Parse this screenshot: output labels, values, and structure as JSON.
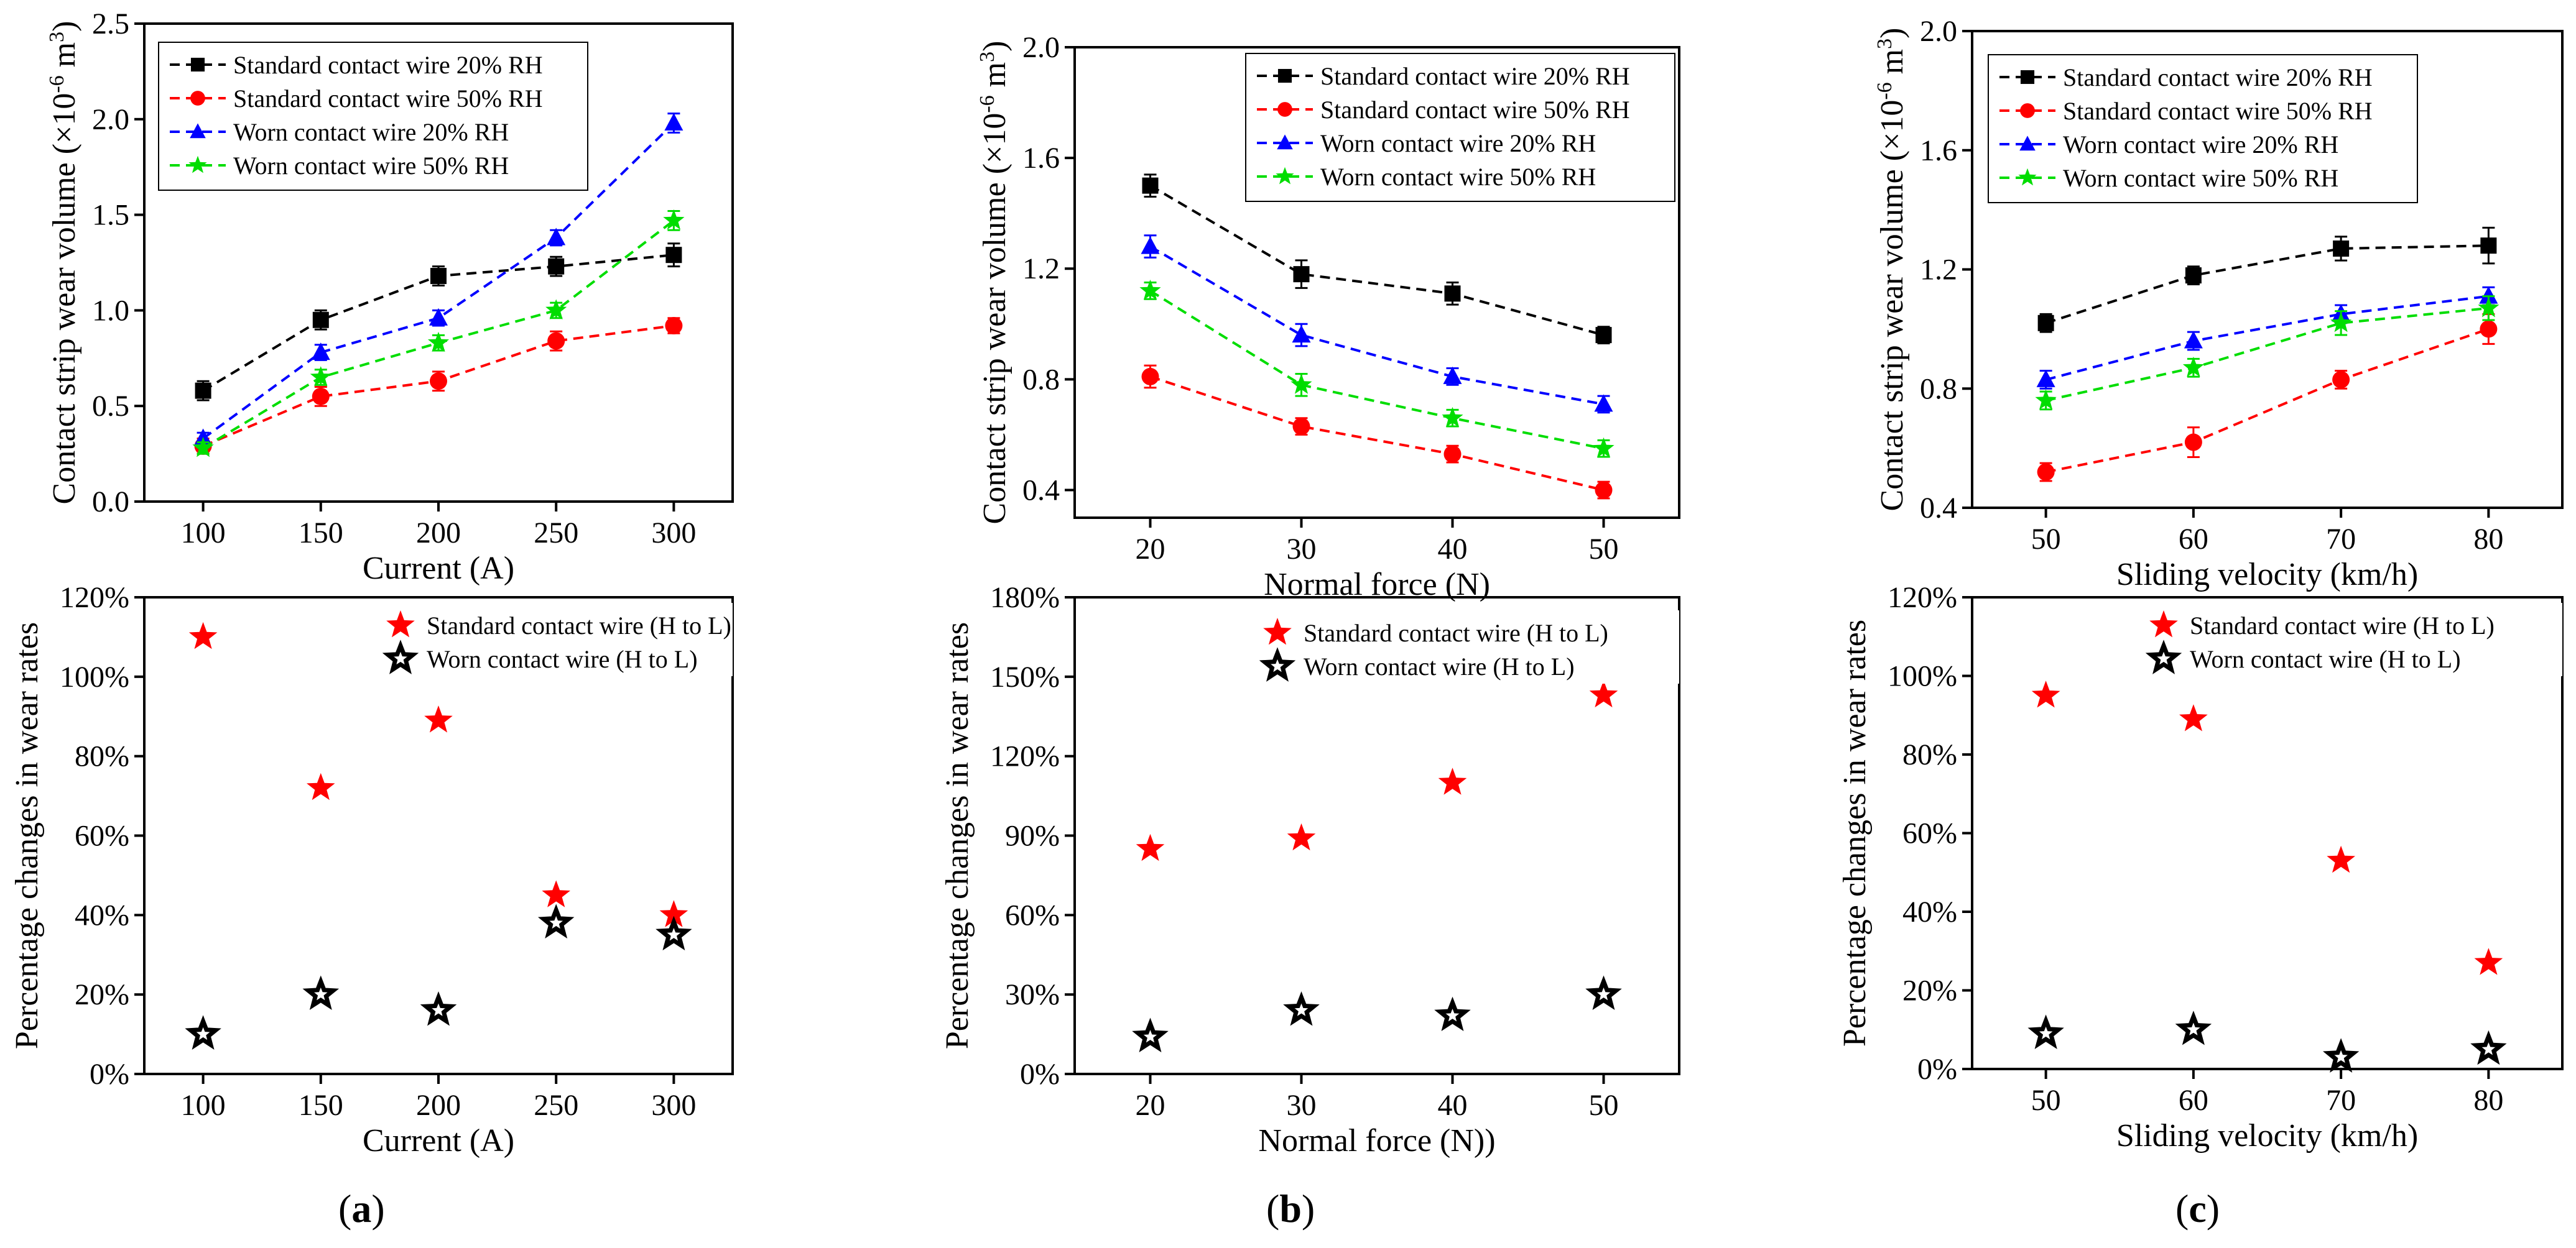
{
  "chart_data": [
    {
      "id": "a-top",
      "type": "line",
      "xlabel": "Current (A)",
      "ylabel": {
        "main": "Contact strip wear volume (×10",
        "sup1": "-6",
        "mid": " m",
        "sup2": "3",
        "end": ")"
      },
      "xticks": [
        100,
        150,
        200,
        250,
        300
      ],
      "xticklabels": [
        "100",
        "150",
        "200",
        "250",
        "300"
      ],
      "xlim": [
        75,
        325
      ],
      "yticks": [
        0.0,
        0.5,
        1.0,
        1.5,
        2.0,
        2.5
      ],
      "yticklabels": [
        "0.0",
        "0.5",
        "1.0",
        "1.5",
        "2.0",
        "2.5"
      ],
      "ylim": [
        0,
        2.5
      ],
      "legend_position": "top-left",
      "x": [
        100,
        150,
        200,
        250,
        300
      ],
      "series": [
        {
          "name": "Standard contact wire 20% RH",
          "marker": "square",
          "color": "#000000",
          "values": [
            0.58,
            0.95,
            1.18,
            1.23,
            1.29
          ],
          "err": [
            0.05,
            0.05,
            0.05,
            0.05,
            0.06
          ]
        },
        {
          "name": "Standard contact wire 50% RH",
          "marker": "circle",
          "color": "#ff0000",
          "values": [
            0.29,
            0.55,
            0.63,
            0.84,
            0.92
          ],
          "err": [
            0.04,
            0.05,
            0.05,
            0.05,
            0.04
          ]
        },
        {
          "name": "Worn contact wire 20% RH",
          "marker": "triangle",
          "color": "#0000ff",
          "values": [
            0.33,
            0.78,
            0.96,
            1.38,
            1.98
          ],
          "err": [
            0.03,
            0.04,
            0.04,
            0.04,
            0.05
          ]
        },
        {
          "name": "Worn contact wire 50% RH",
          "marker": "star",
          "color": "#00dd00",
          "values": [
            0.28,
            0.65,
            0.83,
            1.0,
            1.47
          ],
          "err": [
            0.03,
            0.04,
            0.04,
            0.04,
            0.05
          ]
        }
      ]
    },
    {
      "id": "b-top",
      "type": "line",
      "xlabel": "Normal force (N)",
      "ylabel": {
        "main": "Contact strip wear volume (×10",
        "sup1": "-6",
        "mid": " m",
        "sup2": "3",
        "end": ")"
      },
      "xticks": [
        20,
        30,
        40,
        50
      ],
      "xticklabels": [
        "20",
        "30",
        "40",
        "50"
      ],
      "xlim": [
        15,
        55
      ],
      "yticks": [
        0.4,
        0.8,
        1.2,
        1.6,
        2.0
      ],
      "yticklabels": [
        "0.4",
        "0.8",
        "1.2",
        "1.6",
        "2.0"
      ],
      "ylim": [
        0.3,
        2.0
      ],
      "legend_position": "top-right",
      "x": [
        20,
        30,
        40,
        50
      ],
      "series": [
        {
          "name": "Standard contact wire 20% RH",
          "marker": "square",
          "color": "#000000",
          "values": [
            1.5,
            1.18,
            1.11,
            0.96
          ],
          "err": [
            0.04,
            0.05,
            0.04,
            0.03
          ]
        },
        {
          "name": "Standard contact wire 50% RH",
          "marker": "circle",
          "color": "#ff0000",
          "values": [
            0.81,
            0.63,
            0.53,
            0.4
          ],
          "err": [
            0.04,
            0.03,
            0.03,
            0.03
          ]
        },
        {
          "name": "Worn contact wire 20% RH",
          "marker": "triangle",
          "color": "#0000ff",
          "values": [
            1.28,
            0.96,
            0.81,
            0.71
          ],
          "err": [
            0.04,
            0.04,
            0.03,
            0.03
          ]
        },
        {
          "name": "Worn contact wire 50% RH",
          "marker": "star",
          "color": "#00dd00",
          "values": [
            1.12,
            0.78,
            0.66,
            0.55
          ],
          "err": [
            0.03,
            0.04,
            0.03,
            0.03
          ]
        }
      ]
    },
    {
      "id": "c-top",
      "type": "line",
      "xlabel": "Sliding velocity (km/h)",
      "ylabel": {
        "main": "Contact strip wear volume (×10",
        "sup1": "-6",
        "mid": " m",
        "sup2": "3",
        "end": ")"
      },
      "xticks": [
        50,
        60,
        70,
        80
      ],
      "xticklabels": [
        "50",
        "60",
        "70",
        "80"
      ],
      "xlim": [
        45,
        85
      ],
      "yticks": [
        0.4,
        0.8,
        1.2,
        1.6,
        2.0
      ],
      "yticklabels": [
        "0.4",
        "0.8",
        "1.2",
        "1.6",
        "2.0"
      ],
      "ylim": [
        0.4,
        2.0
      ],
      "legend_position": "top-left",
      "x": [
        50,
        60,
        70,
        80
      ],
      "series": [
        {
          "name": "Standard contact wire 20% RH",
          "marker": "square",
          "color": "#000000",
          "values": [
            1.02,
            1.18,
            1.27,
            1.28
          ],
          "err": [
            0.03,
            0.03,
            0.04,
            0.06
          ]
        },
        {
          "name": "Standard contact wire 50% RH",
          "marker": "circle",
          "color": "#ff0000",
          "values": [
            0.52,
            0.62,
            0.83,
            1.0
          ],
          "err": [
            0.03,
            0.05,
            0.03,
            0.05
          ]
        },
        {
          "name": "Worn contact wire 20% RH",
          "marker": "triangle",
          "color": "#0000ff",
          "values": [
            0.83,
            0.96,
            1.05,
            1.11
          ],
          "err": [
            0.03,
            0.03,
            0.03,
            0.03
          ]
        },
        {
          "name": "Worn contact wire 50% RH",
          "marker": "star",
          "color": "#00dd00",
          "values": [
            0.76,
            0.87,
            1.02,
            1.07
          ],
          "err": [
            0.03,
            0.03,
            0.04,
            0.04
          ]
        }
      ]
    },
    {
      "id": "a-bottom",
      "type": "scatter",
      "xlabel": "Current (A)",
      "ylabel": "Percentage changes in wear rates",
      "xticks": [
        100,
        150,
        200,
        250,
        300
      ],
      "xticklabels": [
        "100",
        "150",
        "200",
        "250",
        "300"
      ],
      "xlim": [
        75,
        325
      ],
      "yticks": [
        0,
        20,
        40,
        60,
        80,
        100,
        120
      ],
      "yticklabels": [
        "0%",
        "20%",
        "40%",
        "60%",
        "80%",
        "100%",
        "120%"
      ],
      "ylim": [
        0,
        120
      ],
      "legend_position": "top-right",
      "x": [
        100,
        150,
        200,
        250,
        300
      ],
      "series": [
        {
          "name": "Standard contact wire (H to L)",
          "marker": "star-filled",
          "color": "#ff0000",
          "values": [
            110,
            72,
            89,
            45,
            40
          ]
        },
        {
          "name": "Worn contact wire (H to L)",
          "marker": "star-open",
          "color": "#000000",
          "values": [
            10,
            20,
            16,
            38,
            35
          ]
        }
      ]
    },
    {
      "id": "b-bottom",
      "type": "scatter",
      "xlabel": "Normal force (N))",
      "ylabel": "Percentage changes in wear rates",
      "xticks": [
        20,
        30,
        40,
        50
      ],
      "xticklabels": [
        "20",
        "30",
        "40",
        "50"
      ],
      "xlim": [
        15,
        55
      ],
      "yticks": [
        0,
        30,
        60,
        90,
        120,
        150,
        180
      ],
      "yticklabels": [
        "0%",
        "30%",
        "60%",
        "90%",
        "120%",
        "150%",
        "180%"
      ],
      "ylim": [
        0,
        180
      ],
      "legend_position": "top-right",
      "x": [
        20,
        30,
        40,
        50
      ],
      "series": [
        {
          "name": "Standard contact wire (H to L)",
          "marker": "star-filled",
          "color": "#ff0000",
          "values": [
            85,
            89,
            110,
            143
          ]
        },
        {
          "name": "Worn contact wire (H to L)",
          "marker": "star-open",
          "color": "#000000",
          "values": [
            14,
            24,
            22,
            30
          ]
        }
      ]
    },
    {
      "id": "c-bottom",
      "type": "scatter",
      "xlabel": "Sliding velocity (km/h)",
      "ylabel": "Percentage changes in wear rates",
      "xticks": [
        50,
        60,
        70,
        80
      ],
      "xticklabels": [
        "50",
        "60",
        "70",
        "80"
      ],
      "xlim": [
        45,
        85
      ],
      "yticks": [
        0,
        20,
        40,
        60,
        80,
        100,
        120
      ],
      "yticklabels": [
        "0%",
        "20%",
        "40%",
        "60%",
        "80%",
        "100%",
        "120%"
      ],
      "ylim": [
        0,
        120
      ],
      "legend_position": "top-right",
      "x": [
        50,
        60,
        70,
        80
      ],
      "series": [
        {
          "name": "Standard contact wire (H to L)",
          "marker": "star-filled",
          "color": "#ff0000",
          "values": [
            95,
            89,
            53,
            27
          ]
        },
        {
          "name": "Worn contact wire (H to L)",
          "marker": "star-open",
          "color": "#000000",
          "values": [
            9,
            10,
            3,
            5
          ]
        }
      ]
    }
  ],
  "panel_labels": {
    "a": "a",
    "b": "b",
    "c": "c"
  }
}
